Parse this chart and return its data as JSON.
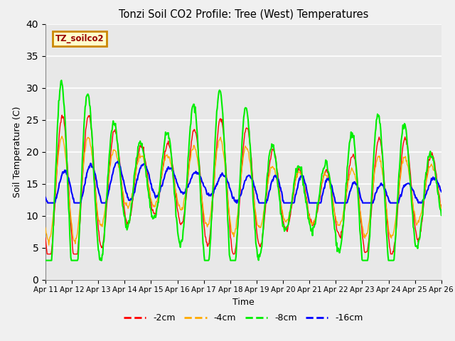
{
  "title": "Tonzi Soil CO2 Profile: Tree (West) Temperatures",
  "xlabel": "Time",
  "ylabel": "Soil Temperature (C)",
  "ylim": [
    0,
    40
  ],
  "xlim": [
    0,
    15
  ],
  "bg_color": "#e8e8e8",
  "fig_color": "#f0f0f0",
  "label_box": "TZ_soilco2",
  "label_box_bg": "#ffffcc",
  "label_box_border": "#cc8800",
  "label_box_text": "#990000",
  "series": [
    {
      "label": "-2cm",
      "color": "#ff0000"
    },
    {
      "label": "-4cm",
      "color": "#ffaa00"
    },
    {
      "label": "-8cm",
      "color": "#00ee00"
    },
    {
      "label": "-16cm",
      "color": "#0000ff"
    }
  ],
  "tick_labels": [
    "Apr 11",
    "Apr 12",
    "Apr 13",
    "Apr 14",
    "Apr 15",
    "Apr 16",
    "Apr 17",
    "Apr 18",
    "Apr 19",
    "Apr 20",
    "Apr 21",
    "Apr 22",
    "Apr 23",
    "Apr 24",
    "Apr 25",
    "Apr 26"
  ],
  "yticks": [
    0,
    5,
    10,
    15,
    20,
    25,
    30,
    35,
    40
  ],
  "figsize": [
    6.4,
    4.8
  ],
  "dpi": 100
}
